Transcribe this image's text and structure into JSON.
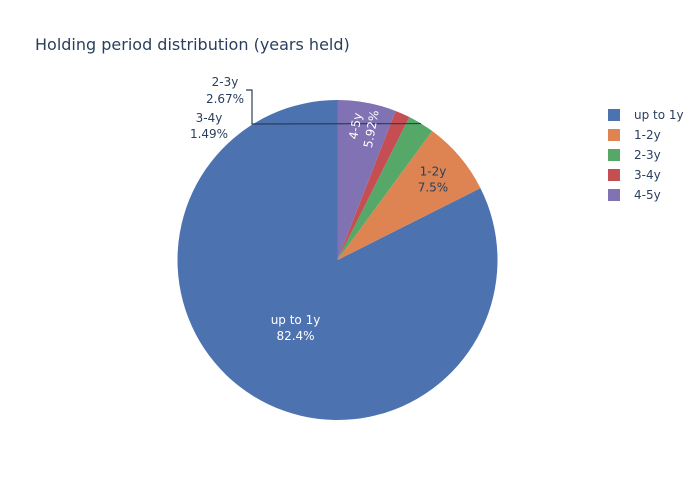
{
  "chart_data": {
    "type": "pie",
    "title": "Holding period distribution (years held)",
    "labels": [
      "up to 1y",
      "1-2y",
      "2-3y",
      "3-4y",
      "4-5y"
    ],
    "values": [
      82.4,
      7.5,
      2.67,
      1.49,
      5.92
    ],
    "value_labels": [
      "82.4%",
      "7.5%",
      "2.67%",
      "1.49%",
      "5.92%"
    ],
    "colors": [
      "#4c72b0",
      "#dd8452",
      "#55a868",
      "#c44e52",
      "#8172b3"
    ],
    "direction": "counterclockwise",
    "start_angle": "top",
    "legend_position": "right"
  }
}
